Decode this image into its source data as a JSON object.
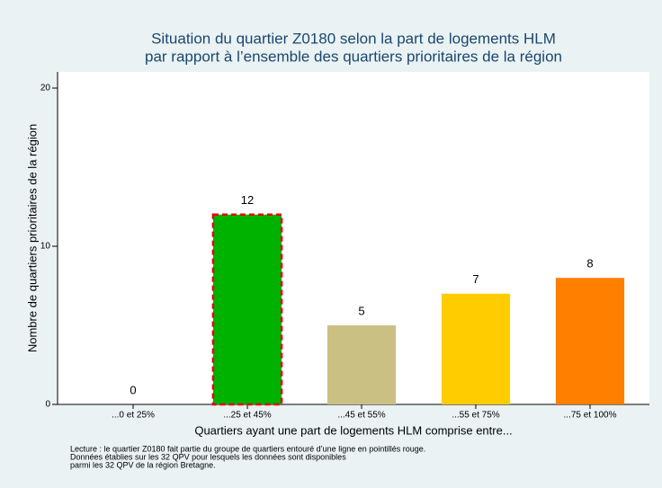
{
  "chart_data": {
    "type": "bar",
    "title": [
      "Situation du quartier Z0180 selon la part de logements HLM",
      "par rapport à l’ensemble des quartiers prioritaires de la région"
    ],
    "x_label": "Quartiers ayant une part de logements HLM comprise entre...",
    "y_label": "Nombre de quartiers prioritaires de la région",
    "categories": [
      "...0 et 25%",
      "...25 et 45%",
      "...45 et 55%",
      "...55 et 75%",
      "...75 et 100%"
    ],
    "values": [
      0,
      12,
      5,
      7,
      8
    ],
    "colors": [
      "#00b200",
      "#00b200",
      "#cbc084",
      "#ffcc00",
      "#ff8000"
    ],
    "highlight": 1,
    "highlight_color": "#e8000b",
    "ylim": [
      0,
      20
    ],
    "yticks": [
      0,
      10,
      20
    ],
    "notes": [
      "Lecture : le quartier Z0180 fait partie du groupe de quartiers entouré d’une ligne en pointillés rouge.",
      "Données établies sur les 32 QPV pour lesquels les données sont disponibles",
      "parmi les 32 QPV de la région Bretagne."
    ]
  }
}
